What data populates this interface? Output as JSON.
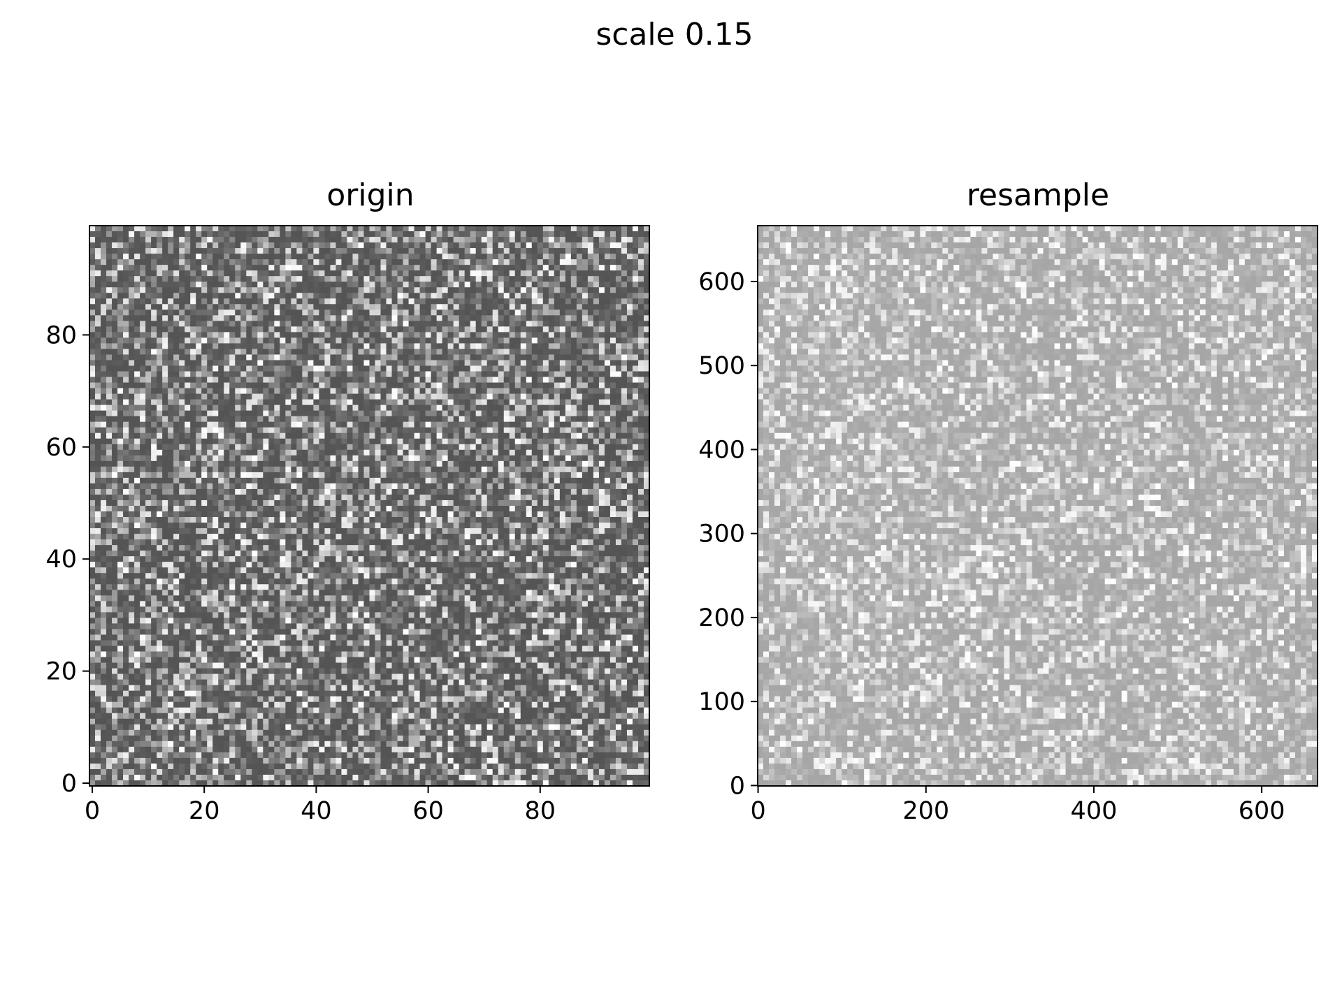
{
  "figure": {
    "suptitle": "scale 0.15"
  },
  "chart_data": [
    {
      "type": "heatmap",
      "title": "origin",
      "colormap": "gray",
      "grid": false,
      "xlim": [
        -0.5,
        99.5
      ],
      "ylim": [
        -0.5,
        99.5
      ],
      "grid_size": [
        100,
        100
      ],
      "intensity_range": [
        0.33,
        1.0
      ],
      "intensity_mean": 0.43,
      "xticks": [
        0,
        20,
        40,
        60,
        80
      ],
      "yticks": [
        0,
        20,
        40,
        60,
        80
      ],
      "xtick_labels": [
        "0",
        "20",
        "40",
        "60",
        "80"
      ],
      "ytick_labels": [
        "0",
        "20",
        "40",
        "60",
        "80"
      ],
      "xlabel": "",
      "ylabel": ""
    },
    {
      "type": "heatmap",
      "title": "resample",
      "colormap": "gray",
      "grid": false,
      "xlim": [
        -0.5,
        666.5
      ],
      "ylim": [
        -0.5,
        666.5
      ],
      "grid_size": [
        100,
        100
      ],
      "intensity_range": [
        0.65,
        1.0
      ],
      "intensity_mean": 0.76,
      "xticks": [
        0,
        200,
        400,
        600
      ],
      "yticks": [
        0,
        100,
        200,
        300,
        400,
        500,
        600
      ],
      "xtick_labels": [
        "0",
        "200",
        "400",
        "600"
      ],
      "ytick_labels": [
        "0",
        "100",
        "200",
        "300",
        "400",
        "500",
        "600"
      ],
      "xlabel": "",
      "ylabel": ""
    }
  ]
}
